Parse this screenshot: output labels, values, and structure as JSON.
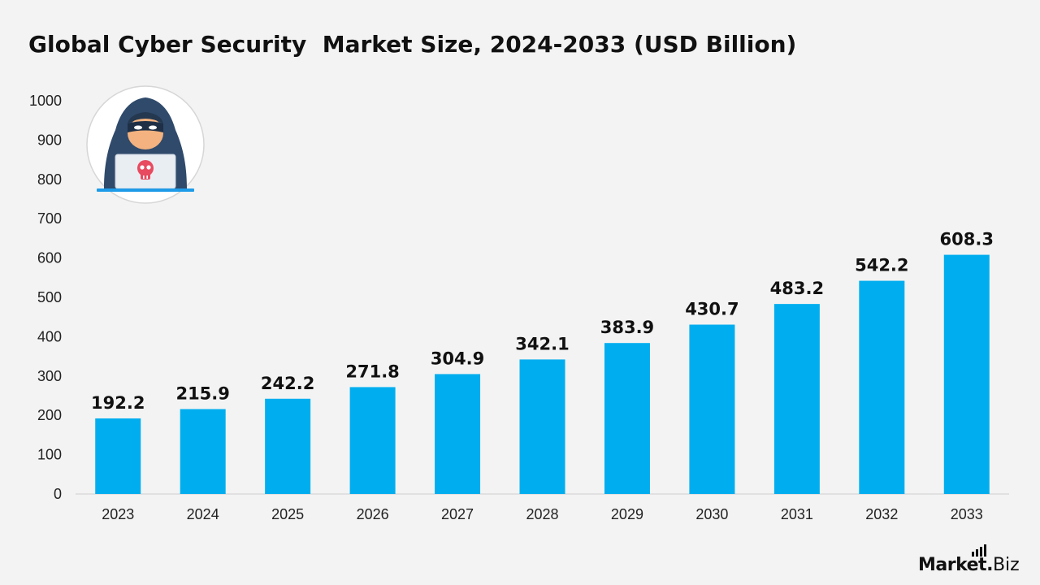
{
  "title": "Global Cyber Security  Market Size, 2024-2033 (USD Billion)",
  "brand": {
    "main": "Market",
    "dot": ".",
    "sub": "Biz"
  },
  "colors": {
    "bar": "#00aeef",
    "axis": "#cfcfcf",
    "background": "#f3f3f3"
  },
  "illustration": {
    "icon": "hacker-laptop-skull-icon"
  },
  "chart_data": {
    "type": "bar",
    "title": "Global Cyber Security  Market Size, 2024-2033 (USD Billion)",
    "xlabel": "",
    "ylabel": "",
    "categories": [
      "2023",
      "2024",
      "2025",
      "2026",
      "2027",
      "2028",
      "2029",
      "2030",
      "2031",
      "2032",
      "2033"
    ],
    "values": [
      192.2,
      215.9,
      242.2,
      271.8,
      304.9,
      342.1,
      383.9,
      430.7,
      483.2,
      542.2,
      608.3
    ],
    "value_labels": [
      "192.2",
      "215.9",
      "242.2",
      "271.8",
      "304.9",
      "342.1",
      "383.9",
      "430.7",
      "483.2",
      "542.2",
      "608.3"
    ],
    "ylim": [
      0,
      1000
    ],
    "yticks": [
      "0",
      "100",
      "200",
      "300",
      "400",
      "500",
      "600",
      "700",
      "800",
      "900",
      "1000"
    ],
    "grid": false,
    "legend": "none"
  }
}
